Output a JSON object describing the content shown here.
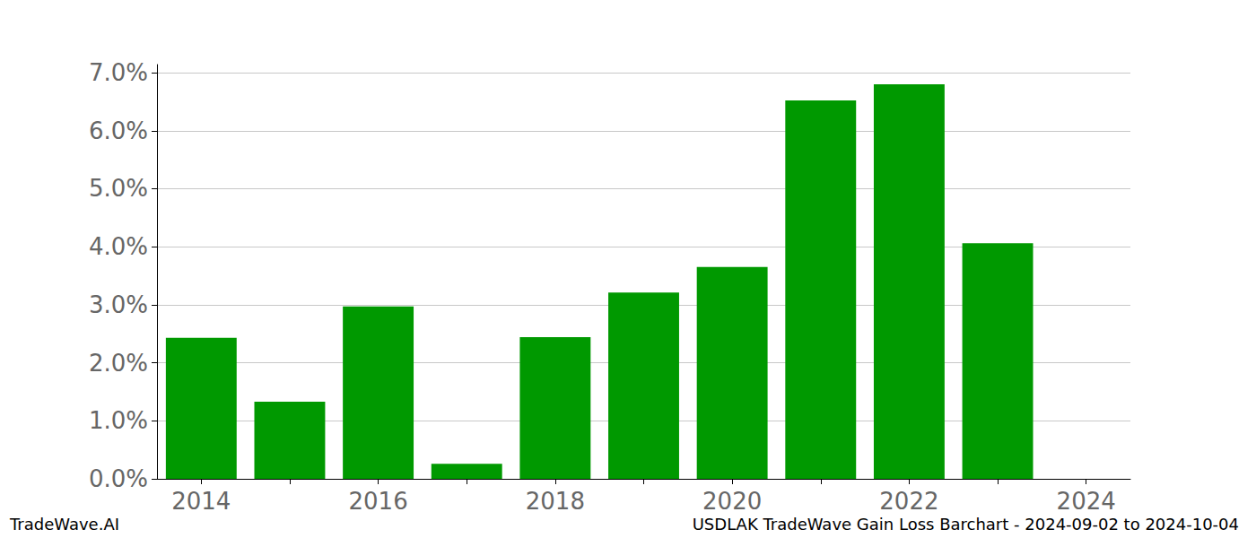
{
  "chart_data": {
    "type": "bar",
    "title": "USDLAK TradeWave Gain Loss Barchart - 2024-09-02 to 2024-10-04",
    "annotations": [
      "TradeWave.AI"
    ],
    "categories": [
      "2014",
      null,
      "2016",
      null,
      "2018",
      null,
      "2020",
      null,
      "2022",
      null,
      "2024"
    ],
    "values": [
      2.43,
      1.33,
      2.97,
      0.26,
      2.44,
      3.21,
      3.65,
      6.52,
      6.8,
      4.06,
      null
    ],
    "color": "#009900",
    "ylim": [
      0,
      7.14
    ],
    "yticks": [
      {
        "value": 0,
        "label": "0.0%"
      },
      {
        "value": 1,
        "label": "1.0%"
      },
      {
        "value": 2,
        "label": "2.0%"
      },
      {
        "value": 3,
        "label": "3.0%"
      },
      {
        "value": 4,
        "label": "4.0%"
      },
      {
        "value": 5,
        "label": "5.0%"
      },
      {
        "value": 6,
        "label": "6.0%"
      },
      {
        "value": 7,
        "label": "7.0%"
      }
    ],
    "grid": true
  }
}
